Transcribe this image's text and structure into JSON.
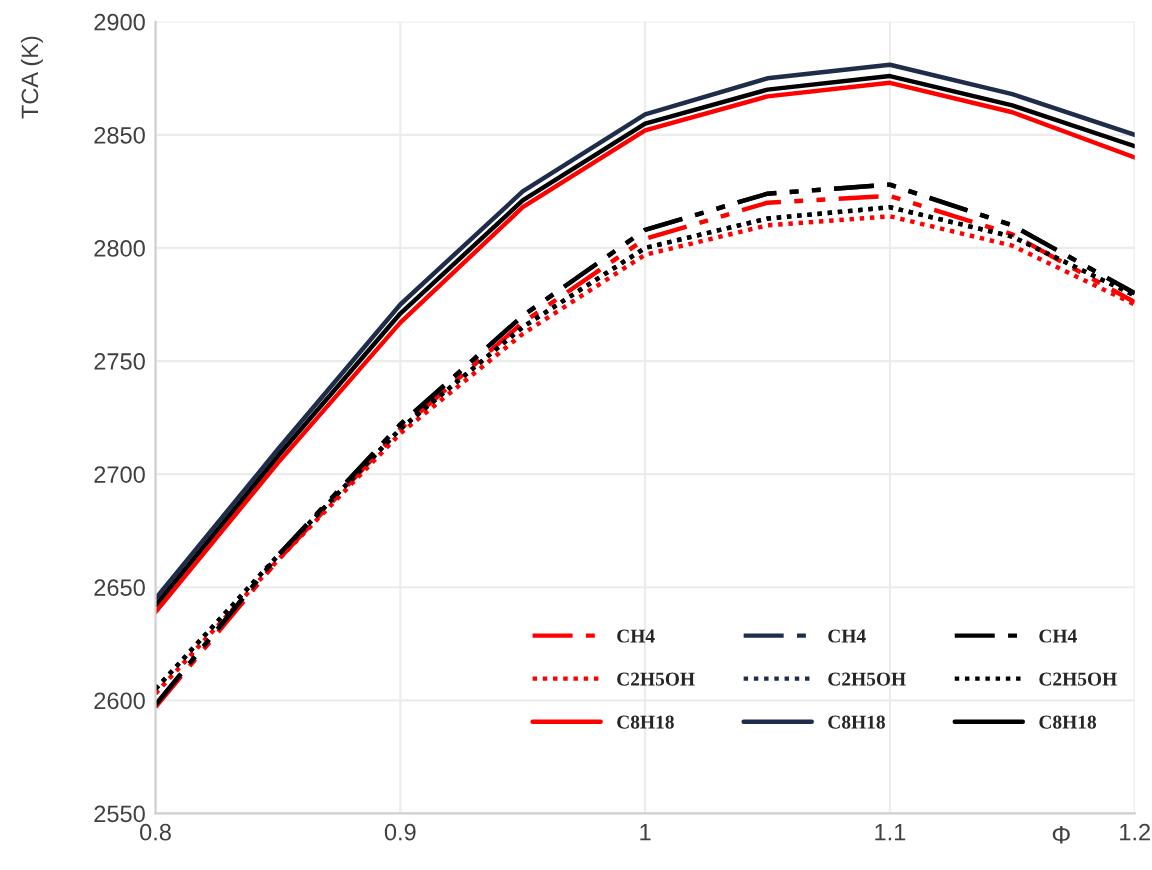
{
  "chart_data": {
    "type": "line",
    "xlabel": "Φ",
    "ylabel": "TCA (K)",
    "x": [
      0.8,
      0.85,
      0.9,
      0.95,
      1.0,
      1.05,
      1.1,
      1.15,
      1.2
    ],
    "xlim": [
      0.8,
      1.2
    ],
    "xticks": [
      0.8,
      0.9,
      {
        "value": 1.0,
        "label": "1"
      },
      1.1,
      1.2
    ],
    "ylim": [
      2550,
      2900
    ],
    "yticks": [
      2550,
      2600,
      2650,
      2700,
      2750,
      2800,
      2850,
      2900
    ],
    "grid": true,
    "legend": "bottom right",
    "marker": "none",
    "series": [
      {
        "name": "CH4",
        "color": "#ff0000",
        "line_style": "dashed",
        "values": [
          2597,
          2662,
          2720,
          2767,
          2804,
          2820,
          2823,
          2806,
          2776
        ]
      },
      {
        "name": "C2H5OH",
        "color": "#ff0000",
        "line_style": "dotted",
        "values": [
          2603,
          2662,
          2718,
          2762,
          2797,
          2810,
          2814,
          2801,
          2775
        ]
      },
      {
        "name": "C8H18",
        "color": "#ff0000",
        "line_style": "solid",
        "values": [
          2639,
          2705,
          2767,
          2818,
          2852,
          2867,
          2873,
          2860,
          2840
        ]
      },
      {
        "name": "CH4",
        "color": "#1f2d4a",
        "line_style": "dashed",
        "values": [
          2598,
          2664,
          2722,
          2770,
          2808,
          2824,
          2828,
          2810,
          2780
        ]
      },
      {
        "name": "C2H5OH",
        "color": "#1f2d4a",
        "line_style": "dotted",
        "values": [
          2605,
          2664,
          2720,
          2765,
          2800,
          2813,
          2818,
          2805,
          2779
        ]
      },
      {
        "name": "C8H18",
        "color": "#1f2d4a",
        "line_style": "solid",
        "values": [
          2645,
          2711,
          2775,
          2825,
          2859,
          2875,
          2881,
          2868,
          2850
        ]
      },
      {
        "name": "CH4",
        "color": "#000000",
        "line_style": "dashed",
        "values": [
          2598,
          2664,
          2722,
          2770,
          2808,
          2824,
          2828,
          2810,
          2780
        ]
      },
      {
        "name": "C2H5OH",
        "color": "#000000",
        "line_style": "dotted",
        "values": [
          2605,
          2664,
          2720,
          2765,
          2800,
          2813,
          2818,
          2805,
          2779
        ]
      },
      {
        "name": "C8H18",
        "color": "#000000",
        "line_style": "solid",
        "values": [
          2642,
          2708,
          2771,
          2821,
          2855,
          2870,
          2876,
          2863,
          2845
        ]
      }
    ]
  }
}
